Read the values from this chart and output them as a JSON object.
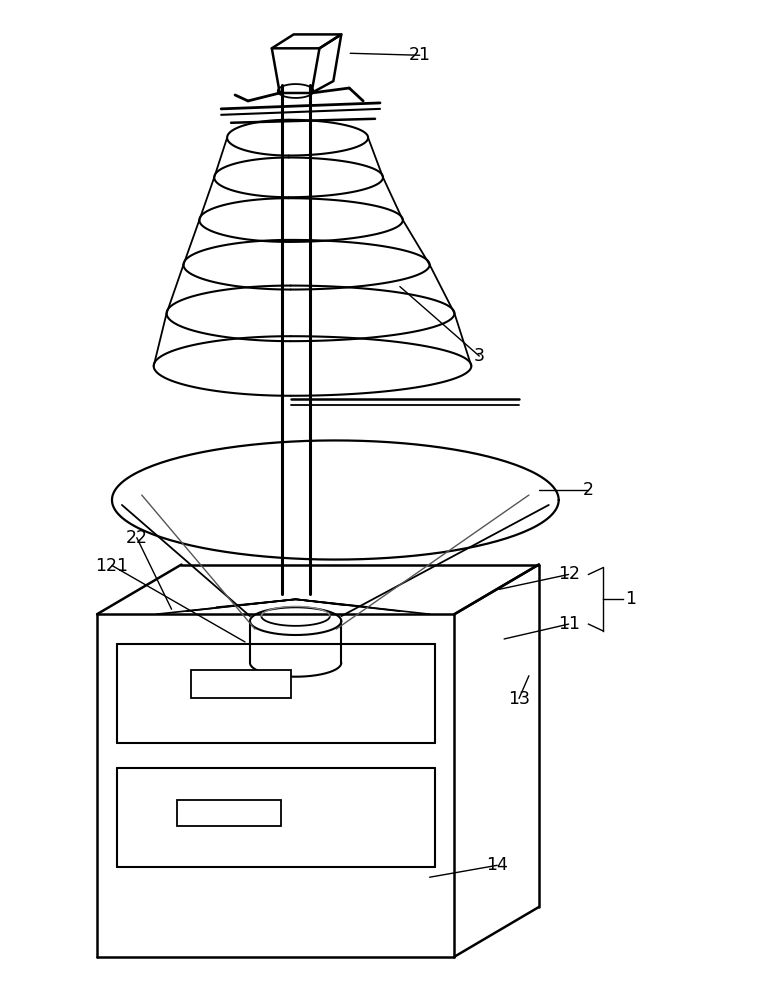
{
  "bg_color": "#ffffff",
  "fig_width": 7.63,
  "fig_height": 10.0,
  "dpi": 100
}
